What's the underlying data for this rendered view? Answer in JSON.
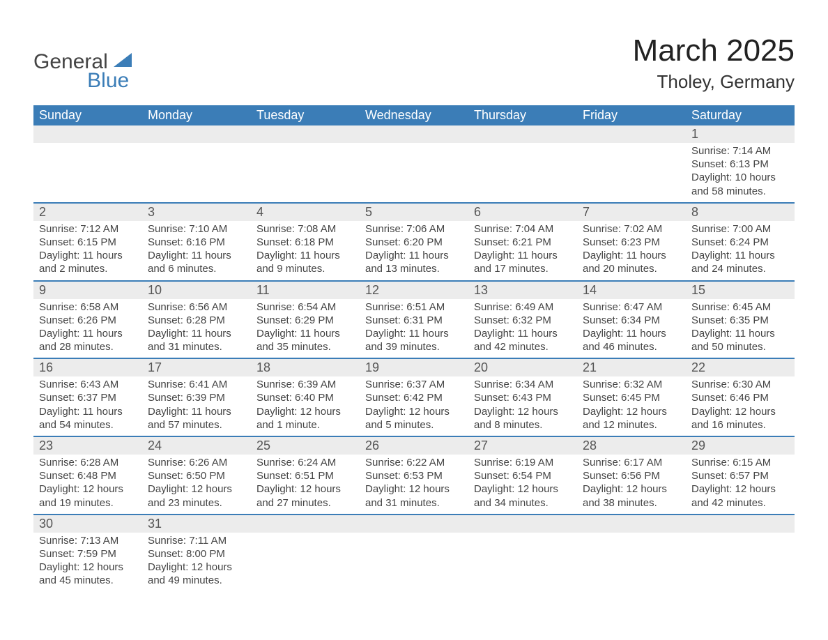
{
  "brand": {
    "main": "General",
    "sub": "Blue",
    "logo_color": "#3b7db7",
    "text_color": "#444444"
  },
  "title": {
    "month": "March 2025",
    "location": "Tholey, Germany",
    "title_fontsize": 44,
    "location_fontsize": 26
  },
  "colors": {
    "header_bg": "#3b7db7",
    "header_fg": "#ffffff",
    "row_divider": "#3b7db7",
    "daynum_bg": "#ececec",
    "body_text": "#444444",
    "page_bg": "#ffffff"
  },
  "typography": {
    "base_family": "Arial",
    "cell_fontsize": 15,
    "daynum_fontsize": 18,
    "header_fontsize": 18
  },
  "weekdays": [
    "Sunday",
    "Monday",
    "Tuesday",
    "Wednesday",
    "Thursday",
    "Friday",
    "Saturday"
  ],
  "weeks": [
    [
      null,
      null,
      null,
      null,
      null,
      null,
      {
        "d": "1",
        "sunrise": "7:14 AM",
        "sunset": "6:13 PM",
        "daylight": "10 hours and 58 minutes."
      }
    ],
    [
      {
        "d": "2",
        "sunrise": "7:12 AM",
        "sunset": "6:15 PM",
        "daylight": "11 hours and 2 minutes."
      },
      {
        "d": "3",
        "sunrise": "7:10 AM",
        "sunset": "6:16 PM",
        "daylight": "11 hours and 6 minutes."
      },
      {
        "d": "4",
        "sunrise": "7:08 AM",
        "sunset": "6:18 PM",
        "daylight": "11 hours and 9 minutes."
      },
      {
        "d": "5",
        "sunrise": "7:06 AM",
        "sunset": "6:20 PM",
        "daylight": "11 hours and 13 minutes."
      },
      {
        "d": "6",
        "sunrise": "7:04 AM",
        "sunset": "6:21 PM",
        "daylight": "11 hours and 17 minutes."
      },
      {
        "d": "7",
        "sunrise": "7:02 AM",
        "sunset": "6:23 PM",
        "daylight": "11 hours and 20 minutes."
      },
      {
        "d": "8",
        "sunrise": "7:00 AM",
        "sunset": "6:24 PM",
        "daylight": "11 hours and 24 minutes."
      }
    ],
    [
      {
        "d": "9",
        "sunrise": "6:58 AM",
        "sunset": "6:26 PM",
        "daylight": "11 hours and 28 minutes."
      },
      {
        "d": "10",
        "sunrise": "6:56 AM",
        "sunset": "6:28 PM",
        "daylight": "11 hours and 31 minutes."
      },
      {
        "d": "11",
        "sunrise": "6:54 AM",
        "sunset": "6:29 PM",
        "daylight": "11 hours and 35 minutes."
      },
      {
        "d": "12",
        "sunrise": "6:51 AM",
        "sunset": "6:31 PM",
        "daylight": "11 hours and 39 minutes."
      },
      {
        "d": "13",
        "sunrise": "6:49 AM",
        "sunset": "6:32 PM",
        "daylight": "11 hours and 42 minutes."
      },
      {
        "d": "14",
        "sunrise": "6:47 AM",
        "sunset": "6:34 PM",
        "daylight": "11 hours and 46 minutes."
      },
      {
        "d": "15",
        "sunrise": "6:45 AM",
        "sunset": "6:35 PM",
        "daylight": "11 hours and 50 minutes."
      }
    ],
    [
      {
        "d": "16",
        "sunrise": "6:43 AM",
        "sunset": "6:37 PM",
        "daylight": "11 hours and 54 minutes."
      },
      {
        "d": "17",
        "sunrise": "6:41 AM",
        "sunset": "6:39 PM",
        "daylight": "11 hours and 57 minutes."
      },
      {
        "d": "18",
        "sunrise": "6:39 AM",
        "sunset": "6:40 PM",
        "daylight": "12 hours and 1 minute."
      },
      {
        "d": "19",
        "sunrise": "6:37 AM",
        "sunset": "6:42 PM",
        "daylight": "12 hours and 5 minutes."
      },
      {
        "d": "20",
        "sunrise": "6:34 AM",
        "sunset": "6:43 PM",
        "daylight": "12 hours and 8 minutes."
      },
      {
        "d": "21",
        "sunrise": "6:32 AM",
        "sunset": "6:45 PM",
        "daylight": "12 hours and 12 minutes."
      },
      {
        "d": "22",
        "sunrise": "6:30 AM",
        "sunset": "6:46 PM",
        "daylight": "12 hours and 16 minutes."
      }
    ],
    [
      {
        "d": "23",
        "sunrise": "6:28 AM",
        "sunset": "6:48 PM",
        "daylight": "12 hours and 19 minutes."
      },
      {
        "d": "24",
        "sunrise": "6:26 AM",
        "sunset": "6:50 PM",
        "daylight": "12 hours and 23 minutes."
      },
      {
        "d": "25",
        "sunrise": "6:24 AM",
        "sunset": "6:51 PM",
        "daylight": "12 hours and 27 minutes."
      },
      {
        "d": "26",
        "sunrise": "6:22 AM",
        "sunset": "6:53 PM",
        "daylight": "12 hours and 31 minutes."
      },
      {
        "d": "27",
        "sunrise": "6:19 AM",
        "sunset": "6:54 PM",
        "daylight": "12 hours and 34 minutes."
      },
      {
        "d": "28",
        "sunrise": "6:17 AM",
        "sunset": "6:56 PM",
        "daylight": "12 hours and 38 minutes."
      },
      {
        "d": "29",
        "sunrise": "6:15 AM",
        "sunset": "6:57 PM",
        "daylight": "12 hours and 42 minutes."
      }
    ],
    [
      {
        "d": "30",
        "sunrise": "7:13 AM",
        "sunset": "7:59 PM",
        "daylight": "12 hours and 45 minutes."
      },
      {
        "d": "31",
        "sunrise": "7:11 AM",
        "sunset": "8:00 PM",
        "daylight": "12 hours and 49 minutes."
      },
      null,
      null,
      null,
      null,
      null
    ]
  ],
  "labels": {
    "sunrise": "Sunrise:",
    "sunset": "Sunset:",
    "daylight": "Daylight:"
  }
}
